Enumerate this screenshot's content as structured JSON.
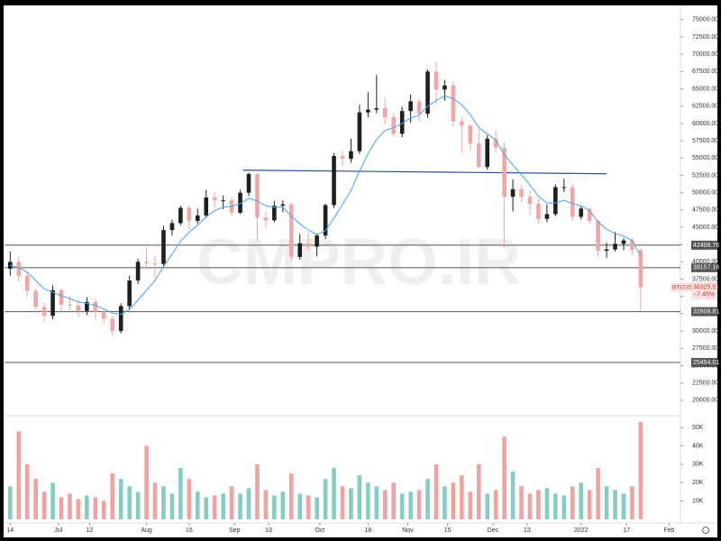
{
  "chart_data": {
    "type": "candlestick",
    "watermark": "CMPRO.IR",
    "symbol": "BTCUSD",
    "change": {
      "value": -7.45,
      "label": "−7.45%"
    },
    "xlim": [
      -2,
      236
    ],
    "xticks": [
      {
        "value": 0,
        "label": "14"
      },
      {
        "value": 17,
        "label": "Jul"
      },
      {
        "value": 28,
        "label": "12"
      },
      {
        "value": 48,
        "label": "Aug"
      },
      {
        "value": 63,
        "label": "16"
      },
      {
        "value": 79,
        "label": "Sep"
      },
      {
        "value": 91,
        "label": "13"
      },
      {
        "value": 109,
        "label": "Oct"
      },
      {
        "value": 126,
        "label": "18"
      },
      {
        "value": 140,
        "label": "Nov"
      },
      {
        "value": 154,
        "label": "15"
      },
      {
        "value": 170,
        "label": "Dec"
      },
      {
        "value": 182,
        "label": "13"
      },
      {
        "value": 201,
        "label": "2022"
      },
      {
        "value": 217,
        "label": "17"
      },
      {
        "value": 232,
        "label": "Feb"
      }
    ],
    "ylim": [
      17900,
      76800
    ],
    "yticks": [
      {
        "value": 20000,
        "label": "20000.00"
      },
      {
        "value": 22500,
        "label": "22500.00"
      },
      {
        "value": 25000,
        "label": "25000.00"
      },
      {
        "value": 27500,
        "label": "27500.00"
      },
      {
        "value": 30000,
        "label": "30000.00"
      },
      {
        "value": 32500,
        "label": "32500.00"
      },
      {
        "value": 35000,
        "label": "35000.00"
      },
      {
        "value": 37500,
        "label": "37500.00"
      },
      {
        "value": 40000,
        "label": "40000.00"
      },
      {
        "value": 42500,
        "label": "42500.00"
      },
      {
        "value": 45000,
        "label": "45000.00"
      },
      {
        "value": 47500,
        "label": "47500.00"
      },
      {
        "value": 50000,
        "label": "50000.00"
      },
      {
        "value": 52500,
        "label": "52500.00"
      },
      {
        "value": 55000,
        "label": "55000.00"
      },
      {
        "value": 57500,
        "label": "57500.00"
      },
      {
        "value": 60000,
        "label": "60000.00"
      },
      {
        "value": 62500,
        "label": "62500.00"
      },
      {
        "value": 65000,
        "label": "65000.00"
      },
      {
        "value": 67500,
        "label": "67500.00"
      },
      {
        "value": 70000,
        "label": "70000.00"
      },
      {
        "value": 72500,
        "label": "72500.00"
      },
      {
        "value": 75000,
        "label": "75000.00"
      }
    ],
    "candles": {
      "up_color": "#1f1f1f",
      "down_color": "#f2a5a5",
      "x": [
        0,
        3,
        6,
        9,
        12,
        15,
        18,
        21,
        24,
        27,
        30,
        33,
        36,
        39,
        42,
        45,
        48,
        51,
        54,
        57,
        60,
        63,
        66,
        69,
        72,
        75,
        78,
        81,
        84,
        87,
        90,
        93,
        96,
        99,
        102,
        105,
        108,
        111,
        114,
        117,
        120,
        123,
        126,
        129,
        132,
        135,
        138,
        141,
        144,
        147,
        150,
        153,
        156,
        159,
        162,
        165,
        168,
        171,
        174,
        177,
        180,
        183,
        186,
        189,
        192,
        195,
        198,
        201,
        204,
        207,
        210,
        213,
        216,
        219,
        222
      ],
      "open": [
        39000,
        40000,
        38000,
        35800,
        33500,
        32200,
        35900,
        33800,
        33700,
        32900,
        34200,
        32800,
        31800,
        30000,
        33600,
        37300,
        40000,
        39800,
        39700,
        44600,
        45600,
        47800,
        45900,
        46700,
        49300,
        48900,
        48900,
        47100,
        50000,
        52700,
        46400,
        46000,
        48100,
        48300,
        40700,
        42700,
        42200,
        43800,
        48200,
        55300,
        54900,
        56000,
        61600,
        62000,
        62200,
        60900,
        58500,
        61800,
        63200,
        61400,
        67500,
        64900,
        65500,
        60300,
        59700,
        57100,
        53700,
        57800,
        56500,
        49400,
        50500,
        49400,
        48400,
        46200,
        46900,
        50800,
        50800,
        46500,
        47700,
        45900,
        41600,
        41800,
        42600,
        43100,
        41700
      ],
      "high": [
        41500,
        40800,
        38600,
        36200,
        34100,
        36600,
        36200,
        35100,
        34600,
        34900,
        34700,
        33200,
        32300,
        34000,
        38000,
        40500,
        42000,
        40900,
        45200,
        46100,
        48100,
        48200,
        47700,
        50400,
        50100,
        49600,
        49300,
        50400,
        52900,
        52900,
        47300,
        48800,
        48900,
        48500,
        44000,
        44300,
        44100,
        48400,
        55700,
        56100,
        57800,
        62700,
        64500,
        67000,
        63700,
        61500,
        62400,
        64200,
        63600,
        67800,
        69000,
        66300,
        66100,
        60800,
        59900,
        59300,
        58300,
        59000,
        57300,
        51900,
        51100,
        50300,
        49100,
        48300,
        51200,
        52000,
        51300,
        48000,
        47900,
        46000,
        42800,
        44300,
        43400,
        43500,
        41900
      ],
      "low": [
        38000,
        37200,
        34900,
        32700,
        31300,
        31700,
        32700,
        33000,
        32100,
        32300,
        31600,
        31100,
        29300,
        29700,
        33200,
        36800,
        38900,
        37500,
        39300,
        43800,
        45300,
        44700,
        45500,
        46300,
        47800,
        47600,
        46600,
        46900,
        49500,
        43000,
        44800,
        45700,
        47200,
        40100,
        40300,
        41600,
        40800,
        43300,
        47800,
        53900,
        54300,
        55600,
        60900,
        61500,
        59900,
        58100,
        58000,
        60100,
        60200,
        60800,
        62800,
        63300,
        59600,
        55700,
        56100,
        53500,
        53300,
        55800,
        42000,
        47300,
        48600,
        46700,
        45600,
        45700,
        46600,
        50100,
        45900,
        46100,
        45500,
        40600,
        40600,
        41500,
        41700,
        41000,
        33000
      ],
      "close": [
        40000,
        38000,
        35800,
        33500,
        32200,
        35900,
        33800,
        33700,
        32900,
        34200,
        32800,
        31800,
        30000,
        33600,
        37300,
        40000,
        39800,
        39700,
        44600,
        45600,
        47800,
        45900,
        46700,
        49300,
        48900,
        48900,
        47100,
        50000,
        52700,
        46400,
        46000,
        48100,
        48300,
        40700,
        42700,
        42200,
        43800,
        48200,
        55300,
        54900,
        56000,
        61600,
        62000,
        62200,
        60900,
        58500,
        61800,
        63200,
        61400,
        67500,
        64900,
        65500,
        60300,
        59700,
        57100,
        53700,
        57800,
        56500,
        49400,
        50500,
        49400,
        48400,
        46200,
        46900,
        50800,
        50800,
        46500,
        47700,
        45900,
        41600,
        41800,
        42600,
        43100,
        41700,
        36325.51
      ]
    },
    "ma": {
      "color": "#42a5f5",
      "values": [
        39500,
        39200,
        38500,
        37300,
        36100,
        35600,
        35100,
        34700,
        34200,
        34000,
        33700,
        33200,
        32600,
        32400,
        33100,
        34500,
        35900,
        37300,
        39300,
        41100,
        43000,
        44300,
        45300,
        46500,
        47400,
        47900,
        48000,
        48400,
        49200,
        48800,
        48100,
        47900,
        47900,
        46600,
        45500,
        44600,
        43900,
        44500,
        46300,
        48300,
        50300,
        53100,
        55600,
        57700,
        59000,
        59400,
        60000,
        60800,
        61200,
        62500,
        63300,
        64000,
        63600,
        62700,
        61300,
        59400,
        58500,
        57600,
        55500,
        54000,
        52600,
        51100,
        49500,
        48500,
        48500,
        48900,
        48400,
        48100,
        47400,
        45800,
        44700,
        44100,
        43700,
        43100,
        40800
      ]
    },
    "levels": [
      42408.76,
      39157.16,
      32808.81,
      25454.01
    ],
    "level_color": "#555555",
    "trendline": {
      "x": [
        82,
        210
      ],
      "values": [
        53250,
        52730
      ],
      "color": "#2a4f8f"
    },
    "volume": {
      "up_color": "#85cdc4",
      "down_color": "#f0a2a0",
      "ylim": [
        -2000,
        56000
      ],
      "yticks": [
        {
          "value": 10000,
          "label": "10K"
        },
        {
          "value": 20000,
          "label": "20K"
        },
        {
          "value": 30000,
          "label": "30K"
        },
        {
          "value": 40000,
          "label": "40K"
        },
        {
          "value": 50000,
          "label": "50K"
        }
      ],
      "values": [
        18000,
        48000,
        30000,
        22000,
        15000,
        20000,
        12000,
        14000,
        11000,
        13000,
        12000,
        10000,
        25000,
        22000,
        18000,
        15000,
        40000,
        20000,
        18000,
        14000,
        28000,
        22000,
        15000,
        12000,
        13000,
        14000,
        18000,
        14000,
        17000,
        30000,
        16000,
        13000,
        15000,
        25000,
        14000,
        13000,
        12000,
        22000,
        28000,
        18000,
        17000,
        24000,
        20000,
        18000,
        16000,
        20000,
        14000,
        15000,
        16000,
        22000,
        30000,
        18000,
        20000,
        24000,
        15000,
        30000,
        14000,
        16000,
        45000,
        26000,
        18000,
        14000,
        16000,
        17000,
        14000,
        13000,
        18000,
        20000,
        16000,
        28000,
        18000,
        16000,
        14000,
        18000,
        53000
      ]
    }
  }
}
